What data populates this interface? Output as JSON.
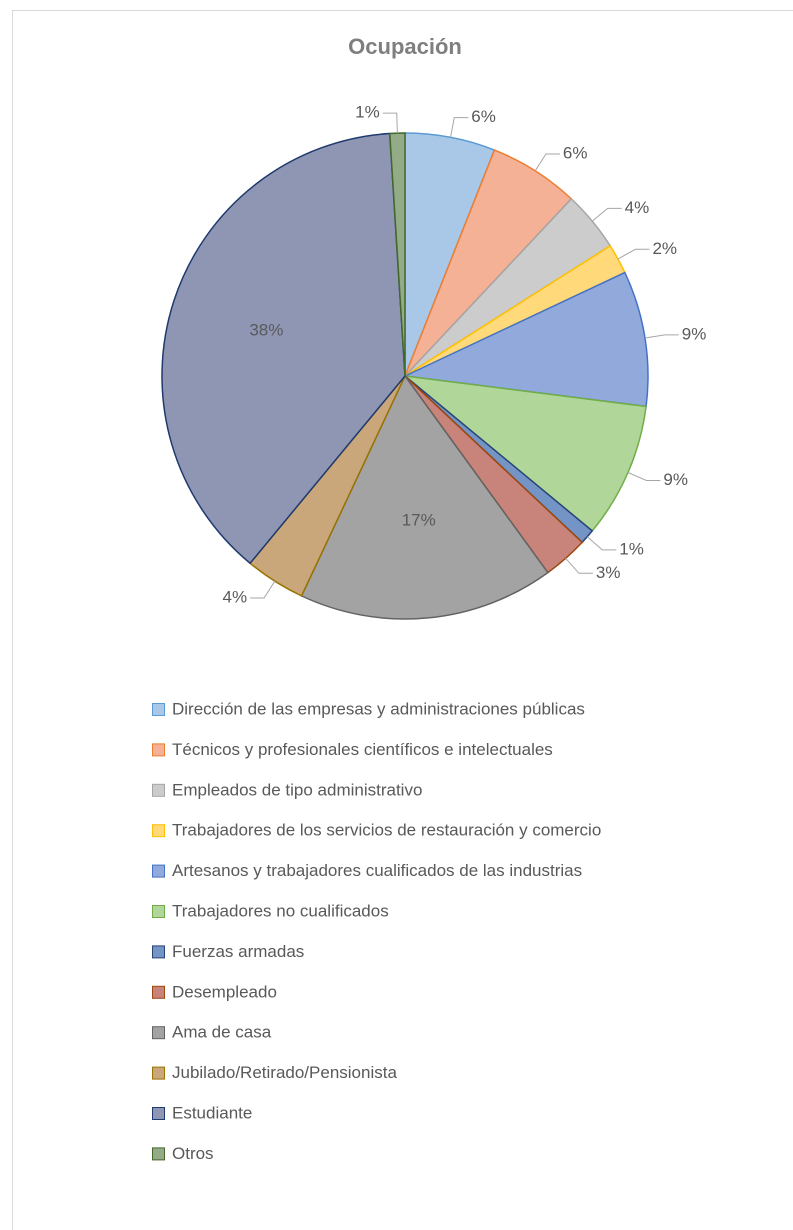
{
  "chart_data": {
    "type": "pie",
    "title": "Ocupación",
    "categories": [
      "Dirección de las empresas y administraciones públicas",
      "Técnicos y profesionales científicos e intelectuales",
      "Empleados de tipo administrativo",
      "Trabajadores de los servicios de restauración y comercio",
      "Artesanos y trabajadores cualificados de las industrias",
      "Trabajadores no cualificados",
      "Fuerzas armadas",
      "Desempleado",
      "Ama de casa",
      "Jubilado/Retirado/Pensionista",
      "Estudiante",
      "Otros"
    ],
    "values": [
      6,
      6,
      4,
      2,
      9,
      9,
      1,
      3,
      17,
      4,
      38,
      1
    ],
    "value_labels": [
      "6%",
      "6%",
      "4%",
      "2%",
      "9%",
      "9%",
      "1%",
      "3%",
      "17%",
      "4%",
      "38%",
      "1%"
    ],
    "colors": [
      "#a9c8e8",
      "#f5b196",
      "#cccccc",
      "#ffd97a",
      "#92a9dc",
      "#b0d69a",
      "#7394c4",
      "#c8837a",
      "#a3a3a3",
      "#caa77a",
      "#8f96b4",
      "#93ab86"
    ],
    "edge_colors": [
      "#5b9bd5",
      "#ed7d31",
      "#a5a5a5",
      "#ffc000",
      "#4472c4",
      "#70ad47",
      "#264478",
      "#9e480e",
      "#636363",
      "#997300",
      "#1f3a6e",
      "#43682b"
    ],
    "legend": "bottom"
  }
}
